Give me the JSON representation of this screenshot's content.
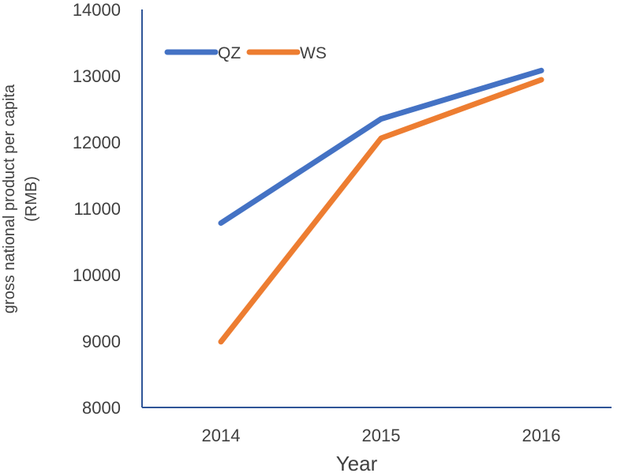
{
  "chart_data": {
    "type": "line",
    "title": "",
    "xlabel": "Year",
    "ylabel_lines": [
      "gross national product per capita",
      "(RMB)"
    ],
    "categories": [
      "2014",
      "2015",
      "2016"
    ],
    "ylim": [
      8000,
      14000
    ],
    "yticks": [
      8000,
      9000,
      10000,
      11000,
      12000,
      13000,
      14000
    ],
    "grid": false,
    "legend_position": "top-left",
    "series": [
      {
        "name": "QZ",
        "color": "#4472C4",
        "values": [
          10780,
          12350,
          13080
        ]
      },
      {
        "name": "WS",
        "color": "#ED7D31",
        "values": [
          8990,
          12060,
          12940
        ]
      }
    ]
  }
}
